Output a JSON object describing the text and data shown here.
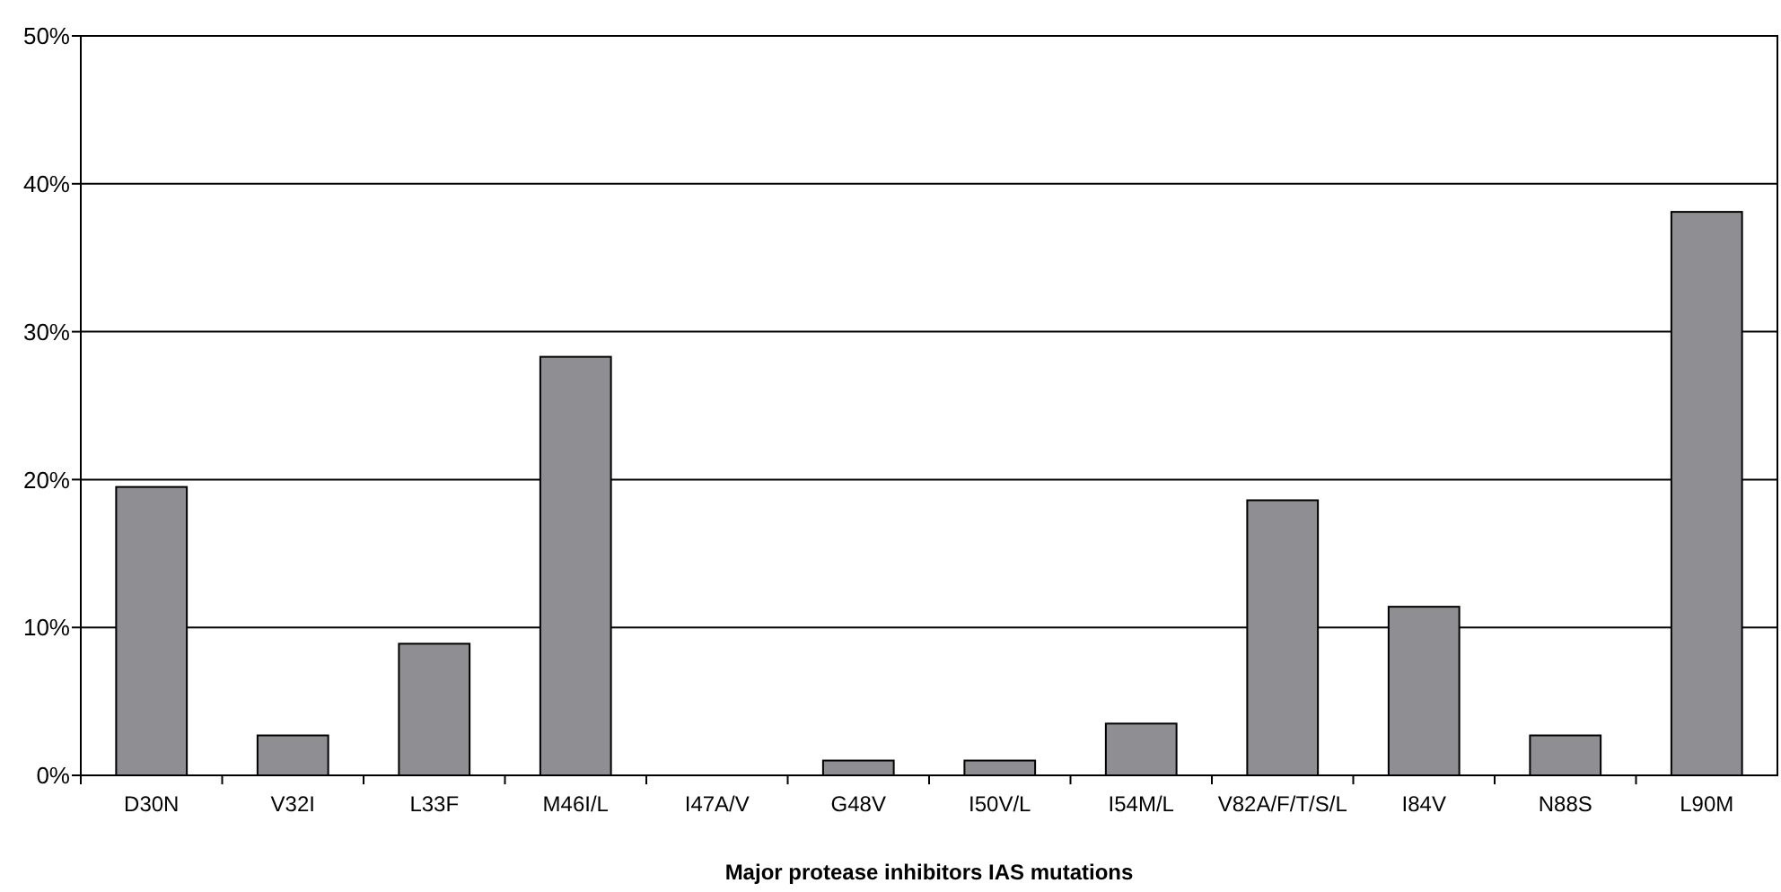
{
  "chart_data": {
    "type": "bar",
    "xlabel": "Major protease inhibitors IAS mutations",
    "categories": [
      "D30N",
      "V32I",
      "L33F",
      "M46I/L",
      "I47A/V",
      "G48V",
      "I50V/L",
      "I54M/L",
      "V82A/F/T/S/L",
      "I84V",
      "N88S",
      "L90M"
    ],
    "values": [
      19.5,
      2.7,
      8.9,
      28.3,
      0,
      1.0,
      1.0,
      3.5,
      18.6,
      11.4,
      2.7,
      38.1
    ],
    "color": "#8e8e93",
    "ylim": [
      0,
      50
    ],
    "yticks": [
      {
        "value": 0,
        "label": "0%"
      },
      {
        "value": 10,
        "label": "10%"
      },
      {
        "value": 20,
        "label": "20%"
      },
      {
        "value": 30,
        "label": "30%"
      },
      {
        "value": 40,
        "label": "40%"
      },
      {
        "value": 50,
        "label": "50%"
      }
    ],
    "grid": "y"
  }
}
